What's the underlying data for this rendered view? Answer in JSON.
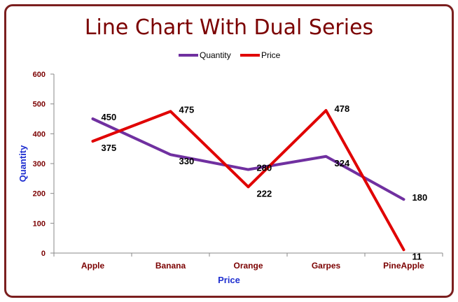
{
  "chart_data": {
    "type": "line",
    "title": "Line Chart With Dual Series",
    "xlabel": "Price",
    "ylabel": "Quantity",
    "categories": [
      "Apple",
      "Banana",
      "Orange",
      "Garpes",
      "PineApple"
    ],
    "ylim": [
      0,
      600
    ],
    "yticks": [
      "0",
      "100",
      "200",
      "300",
      "400",
      "500",
      "600"
    ],
    "legend_position": "top",
    "grid": false,
    "series": [
      {
        "name": "Quantity",
        "color": "#7030a0",
        "values": [
          450,
          330,
          280,
          324,
          180
        ]
      },
      {
        "name": "Price",
        "color": "#e00000",
        "values": [
          375,
          475,
          222,
          478,
          11
        ]
      }
    ]
  }
}
